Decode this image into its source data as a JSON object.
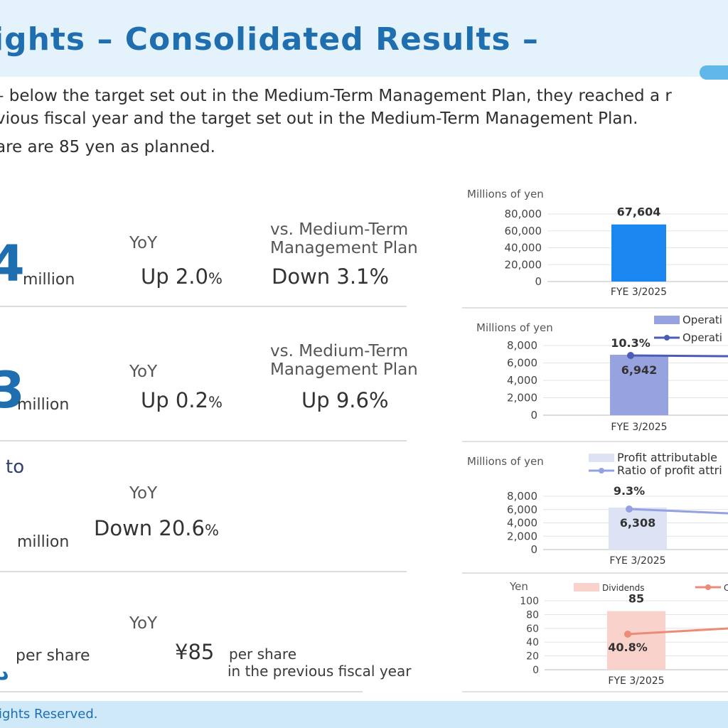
{
  "header": {
    "title": "ights – Consolidated Results –"
  },
  "intro": {
    "line1": "– below the target set out in the Medium-Term Management Plan, they reached a r",
    "line2": "vious fiscal year and the target set out in the Medium-Term Management Plan.",
    "line3": "are are 85 yen as planned."
  },
  "rows": [
    {
      "big": "4",
      "unit": "million",
      "yoy_label": "YoY",
      "yoy_value": "Up 2.0",
      "yoy_pct": "%",
      "plan_label_1": "vs. Medium-Term",
      "plan_label_2": "Management Plan",
      "plan_value": "Down 3.1%"
    },
    {
      "big": "3",
      "unit": "million",
      "yoy_label": "YoY",
      "yoy_value": "Up 0.2",
      "yoy_pct": "%",
      "plan_label_1": "vs. Medium-Term",
      "plan_label_2": "Management Plan",
      "plan_value": "Up 9.6%"
    },
    {
      "heading": "to",
      "unit": "million",
      "yoy_label": "YoY",
      "yoy_value": "Down 20.6",
      "yoy_pct": "%"
    },
    {
      "unit": "per share",
      "yoy_label": "YoY",
      "prev_value": "¥85",
      "prev_unit": "per share",
      "prev_note": "in the previous fiscal year"
    }
  ],
  "footer": {
    "text": "ights Reserved."
  },
  "colors": {
    "blue_bar": "#1a86f0",
    "op_bar": "#97a3de",
    "op_line": "#4a5cb8",
    "profit_bar": "#dde2f5",
    "profit_line": "#93a1e0",
    "div_bar": "#f9d3cb",
    "div_line": "#ec8b78"
  },
  "chart_data": [
    {
      "type": "bar",
      "ylabel": "Millions of yen",
      "categories": [
        "FYE 3/2025"
      ],
      "values": [
        67604
      ],
      "value_labels": [
        "67,604"
      ],
      "yticks": [
        "80,000",
        "60,000",
        "40,000",
        "20,000",
        "0"
      ],
      "ylim": [
        0,
        80000
      ]
    },
    {
      "type": "bar",
      "ylabel": "Millions of yen",
      "categories": [
        "FYE 3/2025"
      ],
      "ylim": [
        0,
        8000
      ],
      "yticks": [
        "8,000",
        "6,000",
        "4,000",
        "2,000",
        "0"
      ],
      "series": [
        {
          "name": "Operati",
          "kind": "bar",
          "values": [
            6942
          ],
          "labels": [
            "6,942"
          ]
        },
        {
          "name": "Operati",
          "kind": "line",
          "values": [
            10.3
          ],
          "labels": [
            "10.3%"
          ]
        }
      ]
    },
    {
      "type": "bar",
      "ylabel": "Millions of yen",
      "categories": [
        "FYE 3/2025"
      ],
      "ylim": [
        0,
        8000
      ],
      "yticks": [
        "8,000",
        "6,000",
        "4,000",
        "2,000",
        "0"
      ],
      "series": [
        {
          "name": "Profit attributable",
          "kind": "bar",
          "values": [
            6308
          ],
          "labels": [
            "6,308"
          ]
        },
        {
          "name": "Ratio of profit attri",
          "kind": "line",
          "values": [
            9.3
          ],
          "labels": [
            "9.3%"
          ]
        }
      ]
    },
    {
      "type": "bar",
      "ylabel": "Yen",
      "categories": [
        "FYE 3/2025"
      ],
      "ylim": [
        0,
        100
      ],
      "yticks": [
        "100",
        "80",
        "60",
        "40",
        "20",
        "0"
      ],
      "series": [
        {
          "name": "Dividends",
          "kind": "bar",
          "values": [
            85
          ],
          "labels": [
            "85"
          ]
        },
        {
          "name": "C",
          "kind": "line",
          "values": [
            40.8
          ],
          "labels": [
            "40.8%"
          ]
        }
      ]
    }
  ]
}
